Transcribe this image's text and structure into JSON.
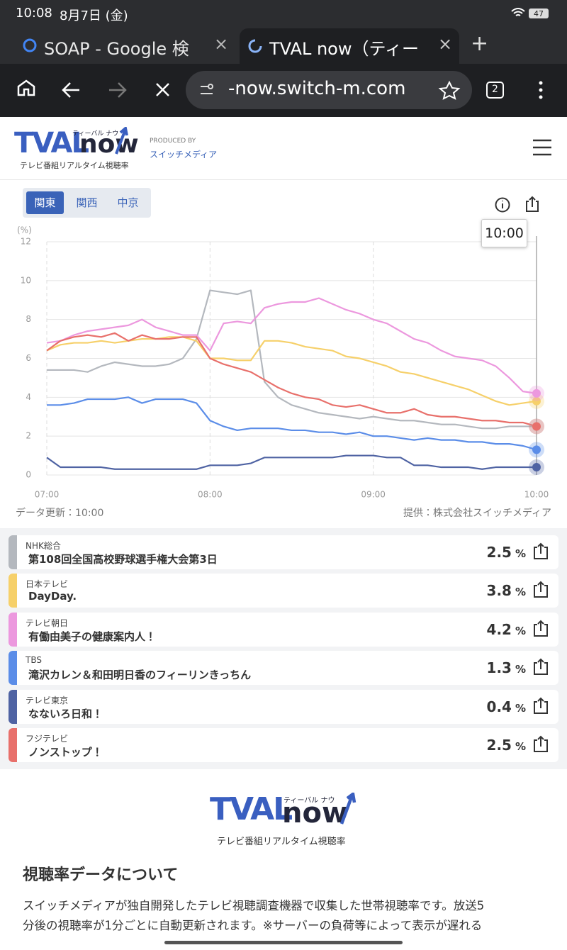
{
  "status_bar": {
    "time": "10:08",
    "date": "8月7日 (金)",
    "battery": "47"
  },
  "browser": {
    "tabs": [
      "SOAP - Google 検",
      "TVAL now（ティー"
    ],
    "url": "-now.switch-m.com",
    "tab_count": "2"
  },
  "header": {
    "logo_main": "TVAL",
    "logo_now": "now",
    "logo_kana": "ティーバル ナウ",
    "logo_sub": "テレビ番組リアルタイム視聴率",
    "produced_by": "PRODUCED BY",
    "producer": "スイッチメディア"
  },
  "region_tabs": [
    "関東",
    "関西",
    "中京"
  ],
  "chart_data": {
    "type": "line",
    "y_axis_label": "(%)",
    "cursor": "10:00",
    "x": [
      "07:00",
      "07:05",
      "07:10",
      "07:15",
      "07:20",
      "07:25",
      "07:30",
      "07:35",
      "07:40",
      "07:45",
      "07:50",
      "07:55",
      "08:00",
      "08:05",
      "08:10",
      "08:15",
      "08:20",
      "08:25",
      "08:30",
      "08:35",
      "08:40",
      "08:45",
      "08:50",
      "08:55",
      "09:00",
      "09:05",
      "09:10",
      "09:15",
      "09:20",
      "09:25",
      "09:30",
      "09:35",
      "09:40",
      "09:45",
      "09:50",
      "09:55",
      "10:00"
    ],
    "xlim": [
      "07:00",
      "10:00"
    ],
    "xticks": [
      "07:00",
      "08:00",
      "09:00",
      "10:00"
    ],
    "ylim": [
      0,
      12
    ],
    "yticks": [
      0,
      2,
      4,
      6,
      8,
      10,
      12
    ],
    "grid": true,
    "series": [
      {
        "color": "#b4b8be",
        "values": [
          5.4,
          5.4,
          5.4,
          5.3,
          5.6,
          5.8,
          5.7,
          5.6,
          5.6,
          5.7,
          6.0,
          7.0,
          9.5,
          9.4,
          9.3,
          9.5,
          4.8,
          4.0,
          3.6,
          3.4,
          3.2,
          3.1,
          3.0,
          2.9,
          3.0,
          2.9,
          2.8,
          2.8,
          2.7,
          2.6,
          2.6,
          2.5,
          2.4,
          2.4,
          2.5,
          2.5,
          2.5
        ]
      },
      {
        "color": "#f6d06a",
        "values": [
          6.4,
          6.7,
          6.8,
          6.8,
          6.9,
          6.8,
          6.9,
          7.0,
          7.0,
          7.1,
          7.1,
          6.9,
          6.0,
          6.0,
          5.9,
          5.9,
          6.9,
          6.9,
          6.8,
          6.6,
          6.5,
          6.4,
          6.1,
          6.0,
          5.8,
          5.6,
          5.3,
          5.2,
          5.0,
          4.8,
          4.6,
          4.4,
          4.1,
          3.8,
          3.6,
          3.7,
          3.8
        ]
      },
      {
        "color": "#ec98de",
        "values": [
          6.8,
          6.9,
          7.2,
          7.4,
          7.5,
          7.6,
          7.7,
          8.0,
          7.6,
          7.4,
          7.2,
          7.2,
          6.4,
          7.8,
          7.9,
          7.8,
          8.6,
          8.8,
          8.9,
          8.9,
          9.1,
          8.8,
          8.5,
          8.3,
          8.0,
          7.8,
          7.4,
          7.0,
          6.8,
          6.4,
          6.1,
          6.0,
          5.9,
          5.6,
          5.0,
          4.3,
          4.2
        ]
      },
      {
        "color": "#5b8de8",
        "values": [
          3.6,
          3.6,
          3.7,
          3.9,
          3.9,
          3.9,
          4.0,
          3.7,
          3.9,
          3.9,
          3.9,
          3.7,
          2.8,
          2.5,
          2.3,
          2.4,
          2.4,
          2.4,
          2.3,
          2.3,
          2.2,
          2.2,
          2.1,
          2.2,
          2.0,
          2.0,
          1.9,
          1.8,
          1.9,
          1.8,
          1.8,
          1.7,
          1.7,
          1.6,
          1.6,
          1.5,
          1.3
        ]
      },
      {
        "color": "#4f63a3",
        "values": [
          0.9,
          0.4,
          0.4,
          0.4,
          0.4,
          0.3,
          0.3,
          0.3,
          0.3,
          0.3,
          0.3,
          0.3,
          0.5,
          0.5,
          0.5,
          0.6,
          0.9,
          0.9,
          0.9,
          0.9,
          0.9,
          0.9,
          1.0,
          1.0,
          1.0,
          0.9,
          0.9,
          0.5,
          0.5,
          0.4,
          0.4,
          0.4,
          0.3,
          0.4,
          0.4,
          0.4,
          0.4
        ]
      },
      {
        "color": "#e8706b",
        "values": [
          6.4,
          6.9,
          7.1,
          7.2,
          7.1,
          7.3,
          6.9,
          7.2,
          7.0,
          7.0,
          7.1,
          7.1,
          6.0,
          5.7,
          5.5,
          5.3,
          4.9,
          4.5,
          4.2,
          4.0,
          3.9,
          3.6,
          3.5,
          3.6,
          3.4,
          3.2,
          3.2,
          3.4,
          3.1,
          3.0,
          3.0,
          2.9,
          2.8,
          2.8,
          2.7,
          2.7,
          2.5
        ]
      }
    ]
  },
  "update_text": "データ更新：10:00",
  "provider_text": "提供：株式会社スイッチメディア",
  "channels": {
    "unit": "%",
    "items": [
      {
        "channel": "NHK総合",
        "program": "第108回全国高校野球選手権大会第3日",
        "rating": 2.5
      },
      {
        "channel": "日本テレビ",
        "program": "DayDay.",
        "rating": 3.8
      },
      {
        "channel": "テレビ朝日",
        "program": "有働由美子の健康案内人！",
        "rating": 4.2
      },
      {
        "channel": "TBS",
        "program": "滝沢カレン＆和田明日香のフィーリンきっちん",
        "rating": 1.3
      },
      {
        "channel": "テレビ東京",
        "program": "なないろ日和！",
        "rating": 0.4
      },
      {
        "channel": "フジテレビ",
        "program": "ノンストップ！",
        "rating": 2.5
      }
    ]
  },
  "about": {
    "heading": "視聴率データについて",
    "lines": [
      "スイッチメディアが独自開発したテレビ視聴調査機器で収集した世帯視聴率です。放送5",
      "分後の視聴率が1分ごとに自動更新されます。※サーバーの負荷等によって表示が遅れる"
    ]
  }
}
